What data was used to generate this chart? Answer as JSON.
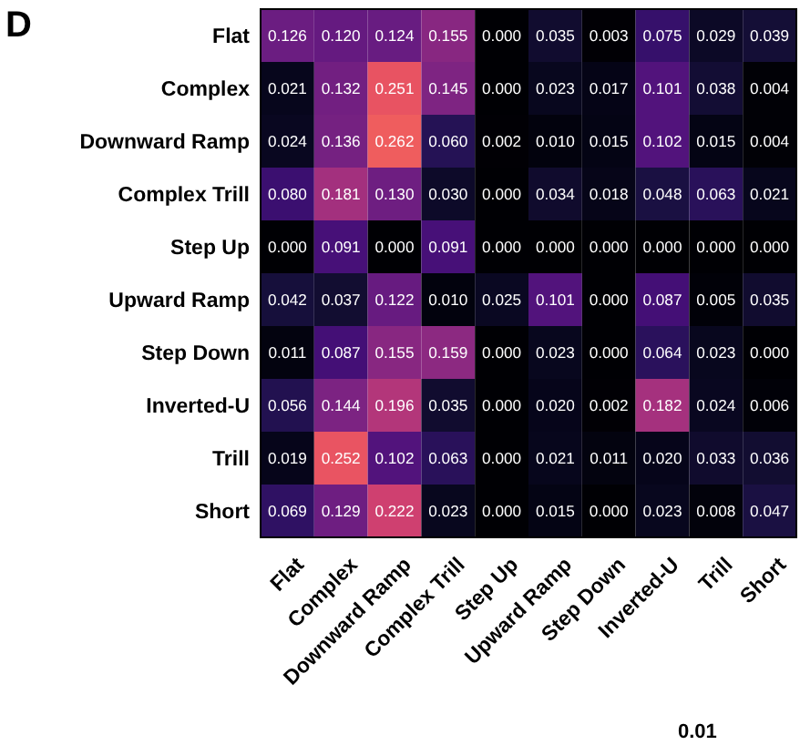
{
  "chart_data": {
    "type": "heatmap",
    "title": "D",
    "categories": [
      "Flat",
      "Complex",
      "Downward Ramp",
      "Complex Trill",
      "Step Up",
      "Upward Ramp",
      "Step Down",
      "Inverted-U",
      "Trill",
      "Short"
    ],
    "y_categories": [
      "Flat",
      "Complex",
      "Downward Ramp",
      "Complex Trill",
      "Step Up",
      "Upward Ramp",
      "Step Down",
      "Inverted-U",
      "Trill",
      "Short"
    ],
    "cells": [
      [
        0.126,
        0.12,
        0.124,
        0.155,
        0.0,
        0.035,
        0.003,
        0.075,
        0.029,
        0.039
      ],
      [
        0.021,
        0.132,
        0.251,
        0.145,
        0.0,
        0.023,
        0.017,
        0.101,
        0.038,
        0.004
      ],
      [
        0.024,
        0.136,
        0.262,
        0.06,
        0.002,
        0.01,
        0.015,
        0.102,
        0.015,
        0.004
      ],
      [
        0.08,
        0.181,
        0.13,
        0.03,
        0.0,
        0.034,
        0.018,
        0.048,
        0.063,
        0.021
      ],
      [
        0.0,
        0.091,
        0.0,
        0.091,
        0.0,
        0.0,
        0.0,
        0.0,
        0.0,
        0.0
      ],
      [
        0.042,
        0.037,
        0.122,
        0.01,
        0.025,
        0.101,
        0.0,
        0.087,
        0.005,
        0.035
      ],
      [
        0.011,
        0.087,
        0.155,
        0.159,
        0.0,
        0.023,
        0.0,
        0.064,
        0.023,
        0.0
      ],
      [
        0.056,
        0.144,
        0.196,
        0.035,
        0.0,
        0.02,
        0.002,
        0.182,
        0.024,
        0.006
      ],
      [
        0.019,
        0.252,
        0.102,
        0.063,
        0.0,
        0.021,
        0.011,
        0.02,
        0.033,
        0.036
      ],
      [
        0.069,
        0.129,
        0.222,
        0.023,
        0.0,
        0.015,
        0.0,
        0.023,
        0.008,
        0.047
      ]
    ],
    "cell_labels": [
      [
        "0.126",
        "0.120",
        "0.124",
        "0.155",
        "0.000",
        "0.035",
        "0.003",
        "0.075",
        "0.029",
        "0.039"
      ],
      [
        "0.021",
        "0.132",
        "0.251",
        "0.145",
        "0.000",
        "0.023",
        "0.017",
        "0.101",
        "0.038",
        "0.004"
      ],
      [
        "0.024",
        "0.136",
        "0.262",
        "0.060",
        "0.002",
        "0.010",
        "0.015",
        "0.102",
        "0.015",
        "0.004"
      ],
      [
        "0.080",
        "0.181",
        "0.130",
        "0.030",
        "0.000",
        "0.034",
        "0.018",
        "0.048",
        "0.063",
        "0.021"
      ],
      [
        "0.000",
        "0.091",
        "0.000",
        "0.091",
        "0.000",
        "0.000",
        "0.000",
        "0.000",
        "0.000",
        "0.000"
      ],
      [
        "0.042",
        "0.037",
        "0.122",
        "0.010",
        "0.025",
        "0.101",
        "0.000",
        "0.087",
        "0.005",
        "0.035"
      ],
      [
        "0.011",
        "0.087",
        "0.155",
        "0.159",
        "0.000",
        "0.023",
        "0.000",
        "0.064",
        "0.023",
        "0.000"
      ],
      [
        "0.056",
        "0.144",
        "0.196",
        "0.035",
        "0.000",
        "0.020",
        "0.002",
        "0.182",
        "0.024",
        "0.006"
      ],
      [
        "0.019",
        "0.252",
        "0.102",
        "0.063",
        "0.000",
        "0.021",
        "0.011",
        "0.020",
        "0.033",
        "0.036"
      ],
      [
        "0.069",
        "0.129",
        "0.222",
        "0.023",
        "0.000",
        "0.015",
        "0.000",
        "0.023",
        "0.008",
        "0.047"
      ]
    ],
    "data_labels": true,
    "annotations": [
      "0.01"
    ]
  }
}
